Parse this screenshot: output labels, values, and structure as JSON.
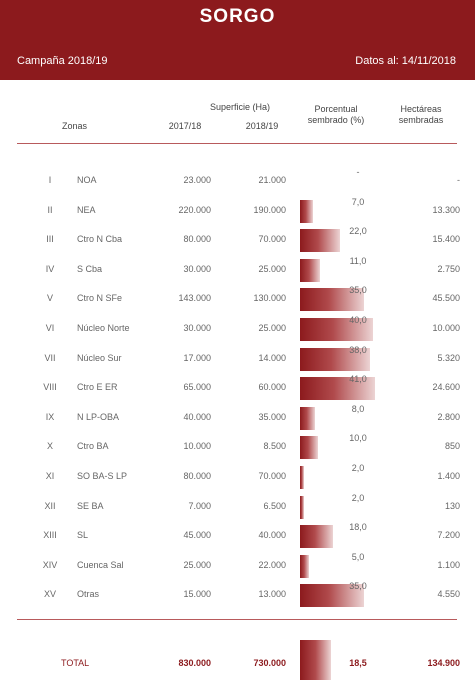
{
  "header": {
    "title": "SORGO",
    "campaign": "Campaña 2018/19",
    "date_label": "Datos al: 14/11/2018",
    "bg_color": "#8c1a1d"
  },
  "columns": {
    "superficie": "Superficie (Ha)",
    "zonas": "Zonas",
    "year_a": "2017/18",
    "year_b": "2018/19",
    "porcentual_1": "Porcentual",
    "porcentual_2": "sembrado (%)",
    "hectareas_1": "Hectáreas",
    "hectareas_2": "sembradas"
  },
  "rows": [
    {
      "num": "I",
      "zone": "NOA",
      "a": "23.000",
      "b": "21.000",
      "pct": "-",
      "pct_value": 0,
      "ha": "-"
    },
    {
      "num": "II",
      "zone": "NEA",
      "a": "220.000",
      "b": "190.000",
      "pct": "7,0",
      "pct_value": 7.0,
      "ha": "13.300"
    },
    {
      "num": "III",
      "zone": "Ctro N Cba",
      "a": "80.000",
      "b": "70.000",
      "pct": "22,0",
      "pct_value": 22.0,
      "ha": "15.400"
    },
    {
      "num": "IV",
      "zone": "S Cba",
      "a": "30.000",
      "b": "25.000",
      "pct": "11,0",
      "pct_value": 11.0,
      "ha": "2.750"
    },
    {
      "num": "V",
      "zone": "Ctro N SFe",
      "a": "143.000",
      "b": "130.000",
      "pct": "35,0",
      "pct_value": 35.0,
      "ha": "45.500"
    },
    {
      "num": "VI",
      "zone": "Núcleo Norte",
      "a": "30.000",
      "b": "25.000",
      "pct": "40,0",
      "pct_value": 40.0,
      "ha": "10.000"
    },
    {
      "num": "VII",
      "zone": "Núcleo Sur",
      "a": "17.000",
      "b": "14.000",
      "pct": "38,0",
      "pct_value": 38.0,
      "ha": "5.320"
    },
    {
      "num": "VIII",
      "zone": "Ctro E ER",
      "a": "65.000",
      "b": "60.000",
      "pct": "41,0",
      "pct_value": 41.0,
      "ha": "24.600"
    },
    {
      "num": "IX",
      "zone": "N LP-OBA",
      "a": "40.000",
      "b": "35.000",
      "pct": "8,0",
      "pct_value": 8.0,
      "ha": "2.800"
    },
    {
      "num": "X",
      "zone": "Ctro BA",
      "a": "10.000",
      "b": "8.500",
      "pct": "10,0",
      "pct_value": 10.0,
      "ha": "850"
    },
    {
      "num": "XI",
      "zone": "SO BA-S LP",
      "a": "80.000",
      "b": "70.000",
      "pct": "2,0",
      "pct_value": 2.0,
      "ha": "1.400"
    },
    {
      "num": "XII",
      "zone": "SE BA",
      "a": "7.000",
      "b": "6.500",
      "pct": "2,0",
      "pct_value": 2.0,
      "ha": "130"
    },
    {
      "num": "XIII",
      "zone": "SL",
      "a": "45.000",
      "b": "40.000",
      "pct": "18,0",
      "pct_value": 18.0,
      "ha": "7.200"
    },
    {
      "num": "XIV",
      "zone": "Cuenca Sal",
      "a": "25.000",
      "b": "22.000",
      "pct": "5,0",
      "pct_value": 5.0,
      "ha": "1.100"
    },
    {
      "num": "XV",
      "zone": "Otras",
      "a": "15.000",
      "b": "13.000",
      "pct": "35,0",
      "pct_value": 35.0,
      "ha": "4.550"
    }
  ],
  "total": {
    "label": "TOTAL",
    "a": "830.000",
    "b": "730.000",
    "pct": "18,5",
    "pct_value": 18.5,
    "ha": "134.900"
  }
}
